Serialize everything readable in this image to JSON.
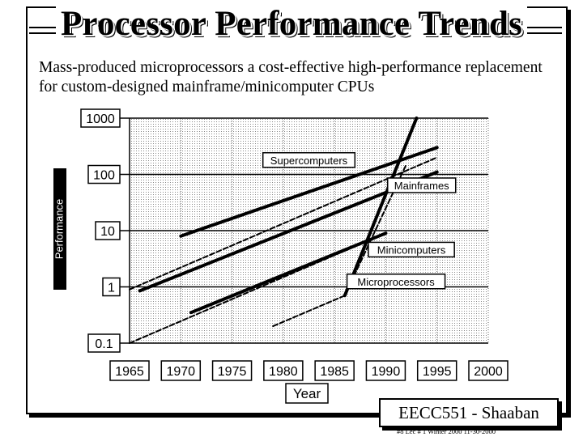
{
  "slide": {
    "title": "Processor Performance Trends",
    "subtitle": "Mass-produced microprocessors a cost-effective high-performance replacement for custom-designed mainframe/minicomputer CPUs",
    "footer_box": "EECC551 - Shaaban",
    "footer_line": "#8   Lec # 1  Winter 2000  11-30-2000"
  },
  "chart_data": {
    "type": "line",
    "title": "",
    "xlabel": "Year",
    "ylabel": "Performance",
    "y_scale": "log",
    "xlim": [
      1965,
      2000
    ],
    "ylim": [
      0.1,
      1000
    ],
    "x_ticks": [
      "1965",
      "1970",
      "1975",
      "1980",
      "1985",
      "1990",
      "1995",
      "2000"
    ],
    "y_ticks": [
      "1000",
      "100",
      "10",
      "1",
      "0.1"
    ],
    "grid": true,
    "series": [
      {
        "name": "Supercomputers",
        "style": "trend",
        "points": [
          [
            1970,
            8
          ],
          [
            1995,
            300
          ]
        ]
      },
      {
        "name": "Supercomputers",
        "style": "envelope",
        "points": [
          [
            1965,
            0.9
          ],
          [
            1995,
            200
          ]
        ]
      },
      {
        "name": "Mainframes",
        "style": "trend",
        "points": [
          [
            1966,
            0.85
          ],
          [
            1995,
            110
          ]
        ]
      },
      {
        "name": "Mainframes",
        "style": "envelope",
        "points": [
          [
            1965,
            0.1
          ],
          [
            1990,
            9
          ]
        ]
      },
      {
        "name": "Minicomputers",
        "style": "trend",
        "points": [
          [
            1971,
            0.35
          ],
          [
            1990,
            9
          ]
        ]
      },
      {
        "name": "Minicomputers",
        "style": "envelope",
        "points": [
          [
            1979,
            0.2
          ],
          [
            1986,
            0.7
          ]
        ]
      },
      {
        "name": "Microprocessors",
        "style": "trend",
        "points": [
          [
            1986,
            0.7
          ],
          [
            1993,
            1000
          ]
        ]
      },
      {
        "name": "Microprocessors",
        "style": "envelope",
        "points": [
          [
            1986,
            0.7
          ],
          [
            1992,
            150
          ]
        ]
      }
    ],
    "annotations": [
      "Supercomputers",
      "Mainframes",
      "Minicomputers",
      "Microprocessors"
    ]
  }
}
